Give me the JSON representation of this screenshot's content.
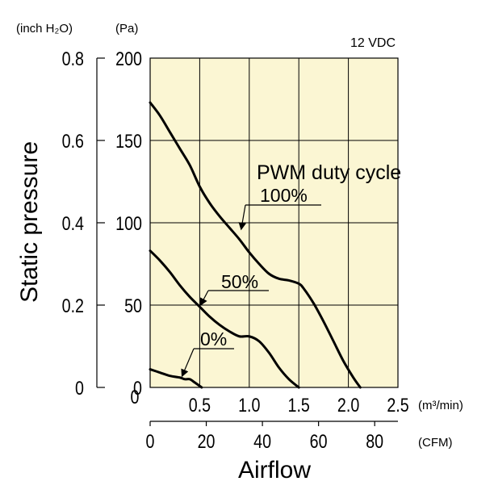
{
  "chart_data": {
    "type": "line",
    "condition_label": "12 VDC",
    "ylabel": "Static pressure",
    "y_unit_inch": "(inch H₂O)",
    "y_unit_pa": "(Pa)",
    "y_ticks_inch": [
      "0.8",
      "0.6",
      "0.4",
      "0.2",
      "0"
    ],
    "y_ticks_pa": [
      "200",
      "150",
      "100",
      "50",
      "0"
    ],
    "ylim_pa": [
      0,
      200
    ],
    "xlabel": "Airflow",
    "x_unit_m3": "(m³/min)",
    "x_unit_cfm": "(CFM)",
    "x_ticks_m3": [
      "0.5",
      "1.0",
      "1.5",
      "2.0",
      "2.5"
    ],
    "x_ticks_cfm": [
      "0",
      "20",
      "40",
      "60",
      "80"
    ],
    "xlim_m3": [
      0,
      2.5
    ],
    "legend_title": "PWM duty cycle",
    "series": [
      {
        "name": "100%",
        "x": [
          0,
          0.1,
          0.2,
          0.3,
          0.4,
          0.5,
          0.6,
          0.7,
          0.8,
          0.9,
          1.0,
          1.1,
          1.2,
          1.3,
          1.4,
          1.5,
          1.55,
          1.65,
          1.75,
          1.85,
          1.95,
          2.05,
          2.12
        ],
        "y": [
          173,
          165,
          155,
          145,
          135,
          122,
          112,
          104,
          97,
          90,
          82,
          75,
          69,
          66,
          65,
          63,
          60,
          51,
          40,
          28,
          16,
          6,
          0
        ]
      },
      {
        "name": "50%",
        "x": [
          0,
          0.1,
          0.2,
          0.3,
          0.4,
          0.5,
          0.6,
          0.7,
          0.8,
          0.9,
          1.0,
          1.1,
          1.2,
          1.3,
          1.4,
          1.5
        ],
        "y": [
          83,
          77,
          70,
          62,
          55,
          49,
          43,
          38,
          34,
          31,
          31,
          28,
          21,
          12,
          5,
          0
        ]
      },
      {
        "name": "0%",
        "x": [
          0,
          0.1,
          0.2,
          0.3,
          0.35,
          0.4,
          0.45,
          0.52
        ],
        "y": [
          11,
          9,
          7,
          6,
          5,
          5,
          3,
          0
        ]
      }
    ],
    "grid": true
  }
}
